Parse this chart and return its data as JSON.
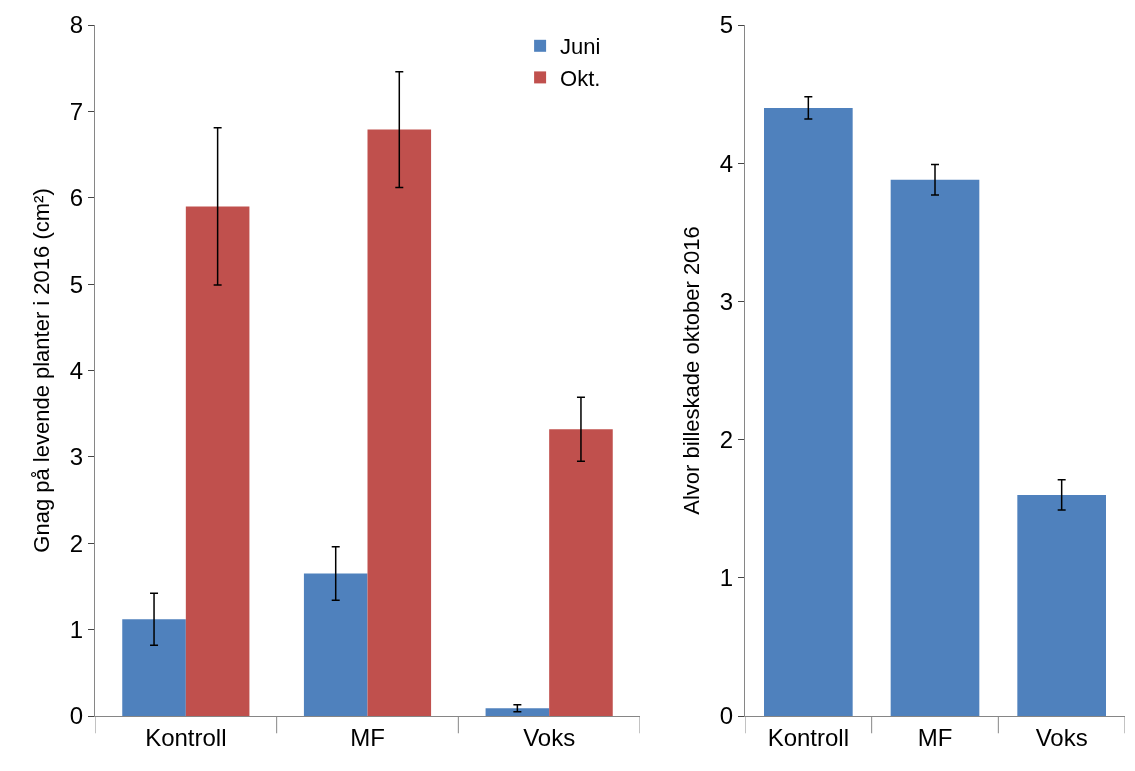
{
  "chart_data": [
    {
      "type": "bar",
      "ylabel": "Gnag på levende planter i 2016 (cm²)",
      "categories": [
        "Kontroll",
        "MF",
        "Voks"
      ],
      "series": [
        {
          "name": "Juni",
          "color": "#4f81bd",
          "values": [
            1.12,
            1.65,
            0.09
          ],
          "errors": [
            0.3,
            0.31,
            0.04
          ]
        },
        {
          "name": "Okt.",
          "color": "#c0504d",
          "values": [
            5.9,
            6.79,
            3.32
          ],
          "errors": [
            0.91,
            0.67,
            0.37
          ]
        }
      ],
      "ylim": [
        0,
        8
      ],
      "yticks": [
        0,
        1,
        2,
        3,
        4,
        5,
        6,
        7,
        8
      ],
      "grid": false,
      "legend": "top right"
    },
    {
      "type": "bar",
      "ylabel": "Alvor billeskade oktober 2016",
      "categories": [
        "Kontroll",
        "MF",
        "Voks"
      ],
      "series": [
        {
          "color": "#4f81bd",
          "values": [
            4.4,
            3.88,
            1.6
          ],
          "errors": [
            0.08,
            0.11,
            0.11
          ]
        }
      ],
      "ylim": [
        0,
        5
      ],
      "yticks": [
        0,
        1,
        2,
        3,
        4,
        5
      ],
      "grid": false,
      "legend": false
    }
  ]
}
